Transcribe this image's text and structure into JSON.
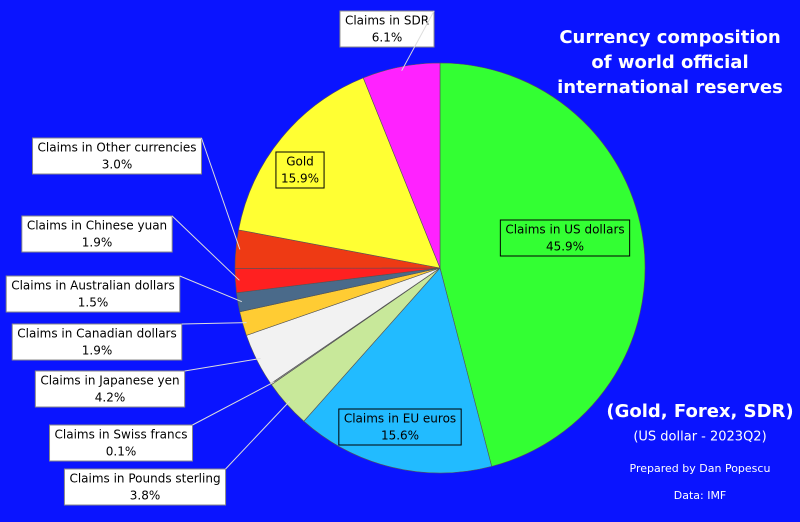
{
  "chart_data": {
    "type": "pie",
    "title": [
      "Currency composition",
      "of world official",
      "international reserves"
    ],
    "subtitle": "(Gold, Forex, SDR)",
    "subtitle2": "(US dollar - 2023Q2)",
    "credit": "Prepared by Dan Popescu",
    "source": "Data: IMF",
    "categories": [
      "Claims in US dollars",
      "Claims in EU euros",
      "Claims in Pounds sterling",
      "Claims in Swiss francs",
      "Claims in Japanese yen",
      "Claims in Canadian dollars",
      "Claims in Australian dollars",
      "Claims in Chinese yuan",
      "Claims in Other currencies",
      "Gold",
      "Claims in SDR"
    ],
    "values": [
      45.9,
      15.6,
      3.8,
      0.1,
      4.2,
      1.9,
      1.5,
      1.9,
      3.0,
      15.9,
      6.1
    ],
    "value_labels": [
      "45.9%",
      "15.6%",
      "3.8%",
      "0.1%",
      "4.2%",
      "1.9%",
      "1.5%",
      "1.9%",
      "3.0%",
      "15.9%",
      "6.1%"
    ],
    "colors": [
      "#33ff33",
      "#22bbff",
      "#c8e89a",
      "#9a9a9a",
      "#f2f2f2",
      "#ffcc33",
      "#4a6a8a",
      "#ff2020",
      "#ee3a14",
      "#ffff33",
      "#ff22ff"
    ]
  }
}
